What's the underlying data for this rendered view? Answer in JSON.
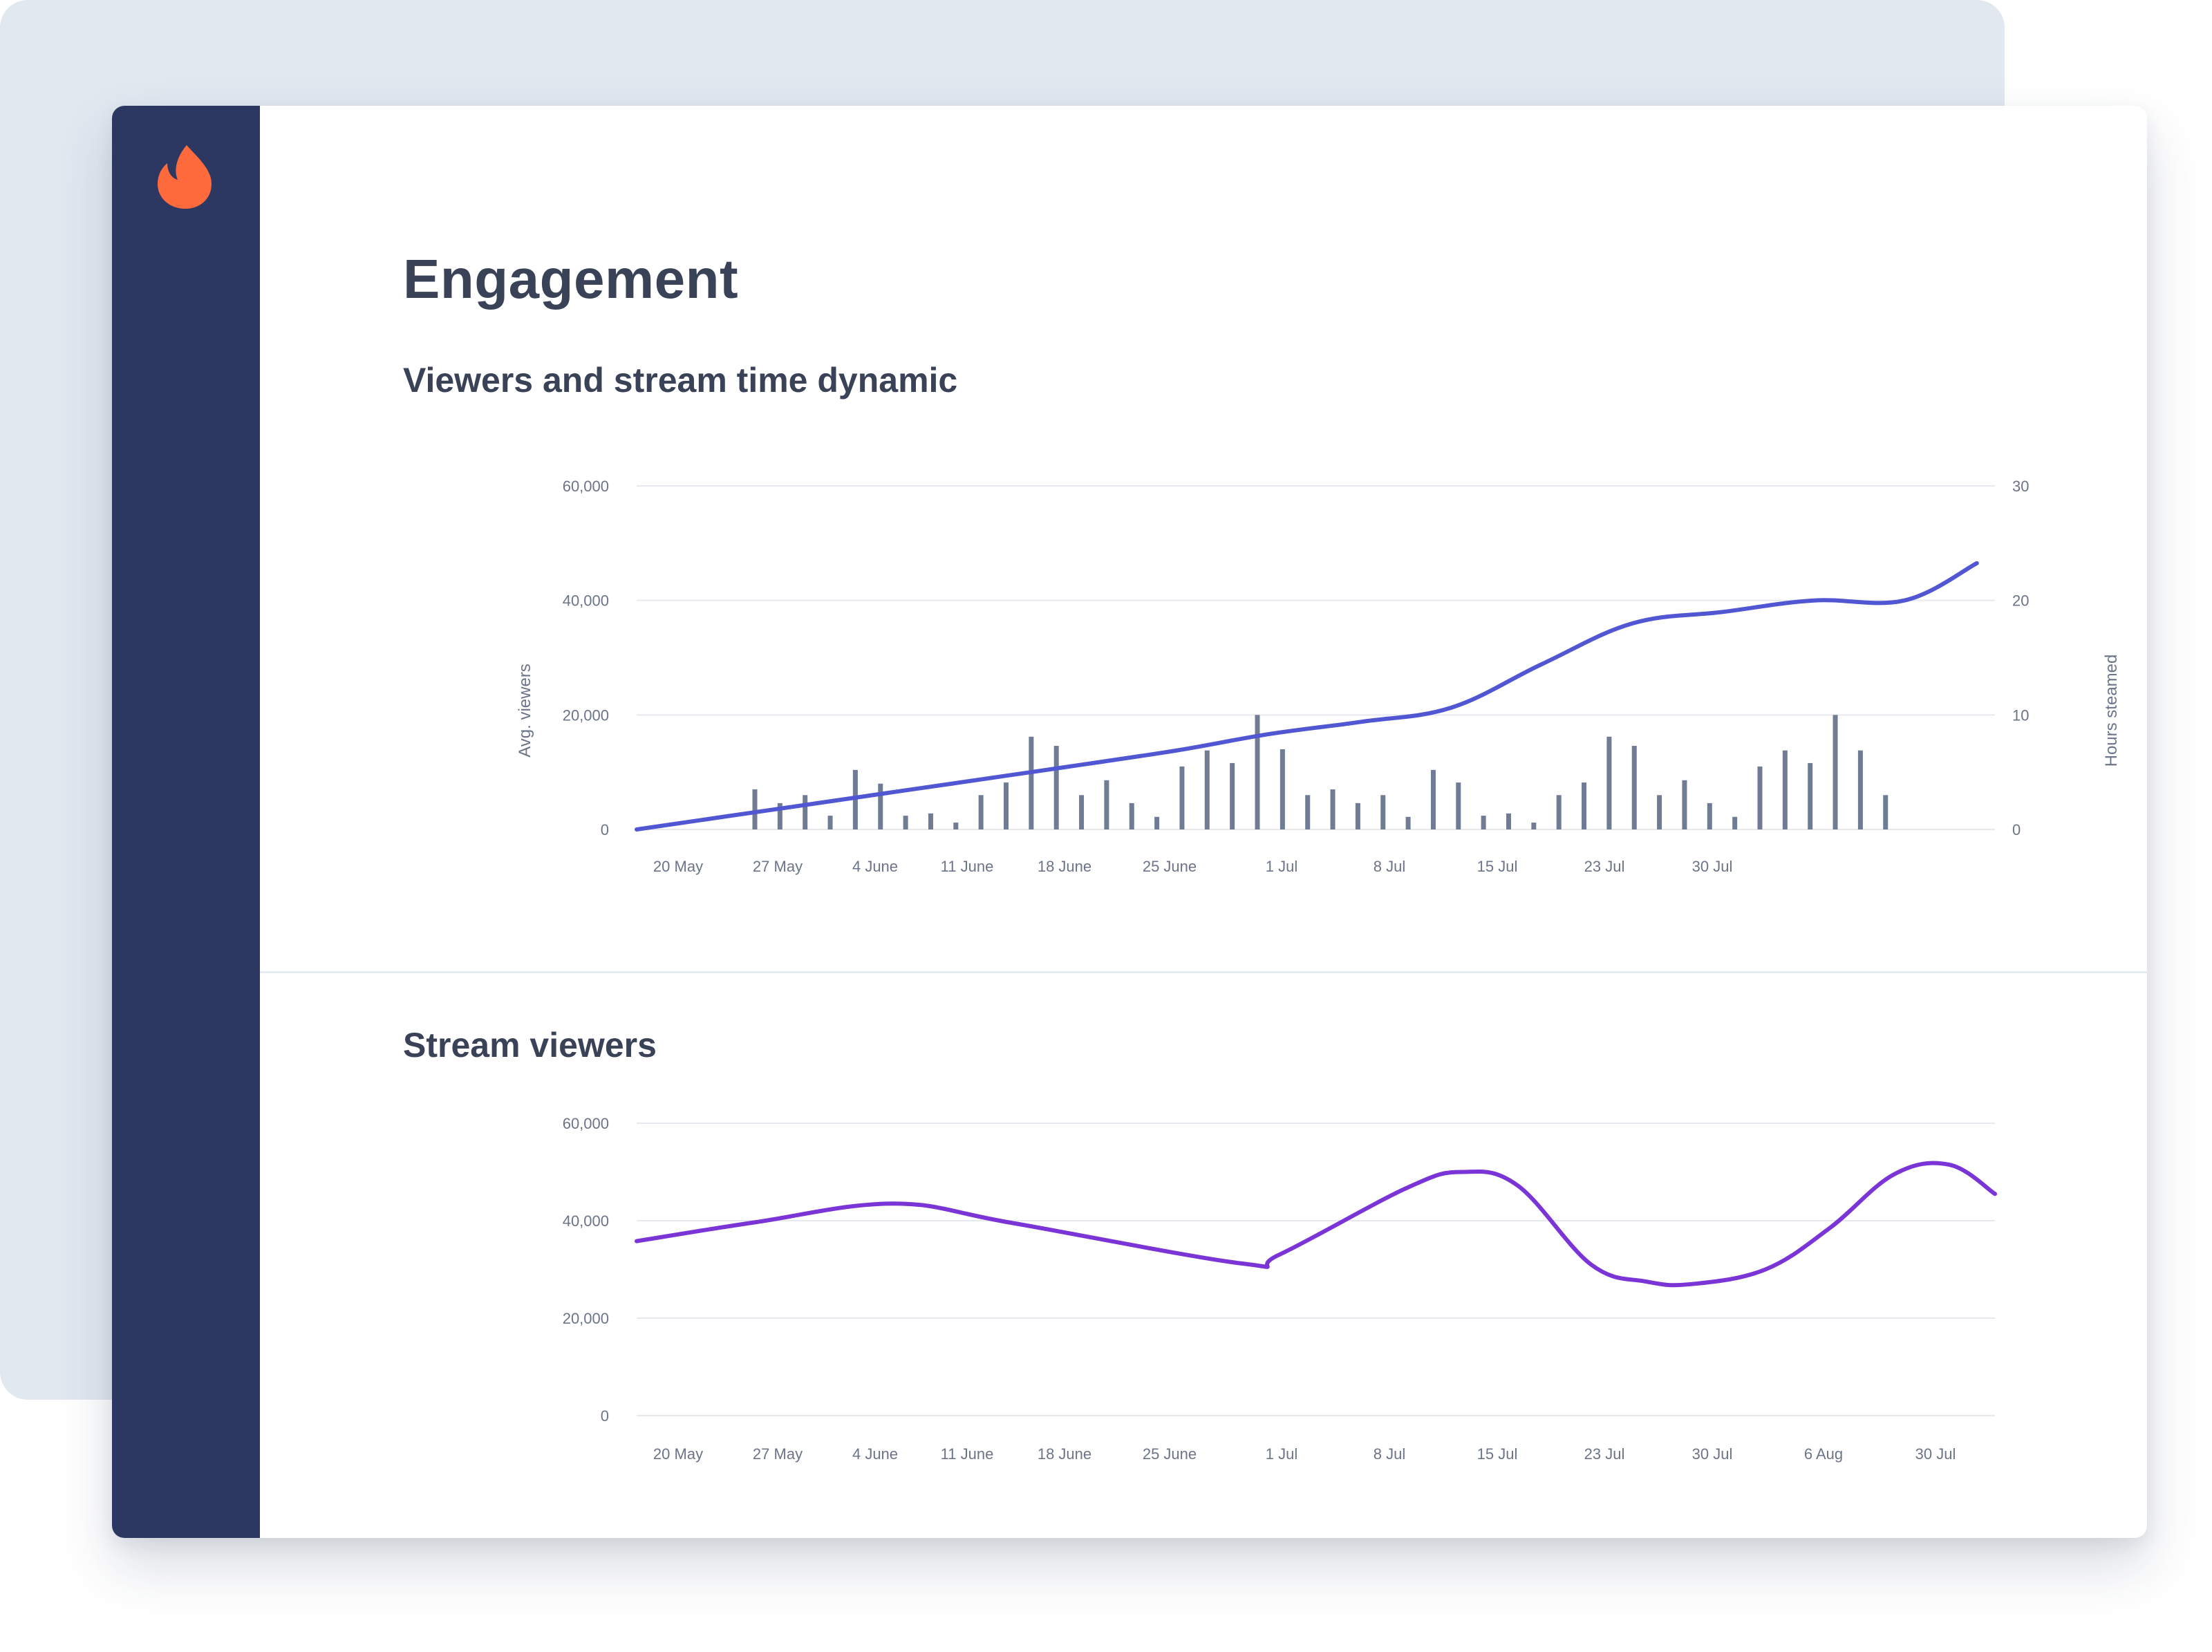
{
  "brand": {
    "logo_icon": "flame-icon",
    "logo_color": "#ff6a3d",
    "sidebar_color": "#2d3862"
  },
  "page": {
    "title": "Engagement"
  },
  "sections": {
    "viewers_time": {
      "title": "Viewers and stream time dynamic"
    },
    "stream_viewers": {
      "title": "Stream viewers"
    }
  },
  "chart_data": [
    {
      "type": "bar+line",
      "title": "Viewers and stream time dynamic",
      "ylabel_left": "Avg. viewers",
      "ylabel_right": "Hours steamed",
      "y_left_ticks": [
        "0",
        "20,000",
        "40,000",
        "60,000"
      ],
      "y_right_ticks": [
        "0",
        "10",
        "20",
        "30"
      ],
      "ylim_left": [
        0,
        60000
      ],
      "ylim_right": [
        0,
        30
      ],
      "x_ticks": [
        "20 May",
        "27 May",
        "4 June",
        "11 June",
        "18 June",
        "25 June",
        "1 Jul",
        "8 Jul",
        "15 Jul",
        "23 Jul",
        "30 Jul"
      ],
      "grid": true,
      "line_color": "#5157d2",
      "bar_color": "#6f7c93",
      "bars": {
        "name": "Hours steamed",
        "values": [
          3.5,
          2.3,
          3,
          1.2,
          5.2,
          4,
          1.2,
          1.4,
          0.6,
          3,
          4.1,
          8.1,
          7.3,
          3,
          4.3,
          2.3,
          1.1,
          5.5,
          6.9,
          5.8,
          10,
          7,
          3,
          3.5,
          2.3,
          3,
          1.1,
          5.2,
          4.1,
          1.2,
          1.4,
          0.6,
          3,
          4.1,
          8.1,
          7.3,
          3,
          4.3,
          2.3,
          1.1,
          5.5,
          6.9,
          5.8,
          10,
          6.9,
          3
        ]
      },
      "line": {
        "name": "Avg. viewers",
        "points": [
          [
            0,
            0
          ],
          [
            1,
            2300
          ],
          [
            2,
            4600
          ],
          [
            3,
            6900
          ],
          [
            4,
            9200
          ],
          [
            5,
            11500
          ],
          [
            6,
            13900
          ],
          [
            7,
            16700
          ],
          [
            8,
            18800
          ],
          [
            9,
            21300
          ],
          [
            10,
            28900
          ],
          [
            11,
            36000
          ],
          [
            12,
            38000
          ],
          [
            13,
            40000
          ],
          [
            14,
            40000
          ],
          [
            14.8,
            46500
          ]
        ]
      }
    },
    {
      "type": "line",
      "title": "Stream viewers",
      "y_ticks": [
        "0",
        "20,000",
        "40,000",
        "60,000"
      ],
      "ylim": [
        0,
        60000
      ],
      "x_ticks": [
        "20 May",
        "27 May",
        "4 June",
        "11 June",
        "18 June",
        "25 June",
        "1 Jul",
        "8 Jul",
        "15 Jul",
        "23 Jul",
        "30 Jul",
        "6 Aug",
        "30 Jul"
      ],
      "grid": true,
      "line_color": "#7b35d6",
      "points": [
        [
          0,
          35800
        ],
        [
          1.3,
          39700
        ],
        [
          2.8,
          43500
        ],
        [
          4.1,
          39500
        ],
        [
          6.6,
          31200
        ],
        [
          7.0,
          33000
        ],
        [
          8.4,
          46800
        ],
        [
          9.0,
          50000
        ],
        [
          9.6,
          47200
        ],
        [
          10.4,
          31000
        ],
        [
          11.0,
          27500
        ],
        [
          11.5,
          27000
        ],
        [
          12.3,
          30000
        ],
        [
          13.0,
          38500
        ],
        [
          13.7,
          49500
        ],
        [
          14.3,
          51500
        ],
        [
          14.8,
          45500
        ]
      ]
    }
  ]
}
